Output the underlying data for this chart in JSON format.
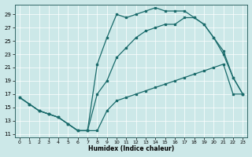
{
  "xlabel": "Humidex (Indice chaleur)",
  "bg_color": "#cce8e8",
  "line_color": "#1a6b6b",
  "xlim": [
    -0.5,
    23.5
  ],
  "ylim": [
    10.5,
    30.5
  ],
  "xticks": [
    0,
    1,
    2,
    3,
    4,
    5,
    6,
    7,
    8,
    9,
    10,
    11,
    12,
    13,
    14,
    15,
    16,
    17,
    18,
    19,
    20,
    21,
    22,
    23
  ],
  "yticks": [
    11,
    13,
    15,
    17,
    19,
    21,
    23,
    25,
    27,
    29
  ],
  "line1_x": [
    0,
    1,
    2,
    3,
    4,
    5,
    6,
    7,
    8,
    9,
    10,
    11,
    12,
    13,
    14,
    15,
    16,
    17,
    18,
    19,
    20,
    21,
    22,
    23
  ],
  "line1_y": [
    16.5,
    15.5,
    14.5,
    14.0,
    13.5,
    12.5,
    11.5,
    11.5,
    11.5,
    14.5,
    16.0,
    16.5,
    17.0,
    17.5,
    18.0,
    18.5,
    19.0,
    19.5,
    20.0,
    20.5,
    21.0,
    21.5,
    17.0,
    17.0
  ],
  "line2_x": [
    0,
    1,
    2,
    3,
    4,
    5,
    6,
    7,
    8,
    9,
    10,
    11,
    12,
    13,
    14,
    15,
    16,
    17,
    18,
    19,
    20,
    21,
    22,
    23
  ],
  "line2_y": [
    16.5,
    15.5,
    14.5,
    14.0,
    13.5,
    12.5,
    11.5,
    11.5,
    21.5,
    25.5,
    29.0,
    28.5,
    29.0,
    29.5,
    30.0,
    29.5,
    29.5,
    29.5,
    28.5,
    27.5,
    25.5,
    23.0,
    19.5,
    17.0
  ],
  "line3_x": [
    0,
    1,
    2,
    3,
    4,
    5,
    6,
    7,
    8,
    9,
    10,
    11,
    12,
    13,
    14,
    15,
    16,
    17,
    18,
    19,
    20,
    21,
    22,
    23
  ],
  "line3_y": [
    16.5,
    15.5,
    14.5,
    14.0,
    13.5,
    12.5,
    11.5,
    11.5,
    17.0,
    19.0,
    22.5,
    24.0,
    25.5,
    26.5,
    27.0,
    27.5,
    27.5,
    28.5,
    28.5,
    27.5,
    25.5,
    23.5,
    19.5,
    17.0
  ],
  "figsize": [
    3.2,
    2.0
  ],
  "dpi": 100
}
